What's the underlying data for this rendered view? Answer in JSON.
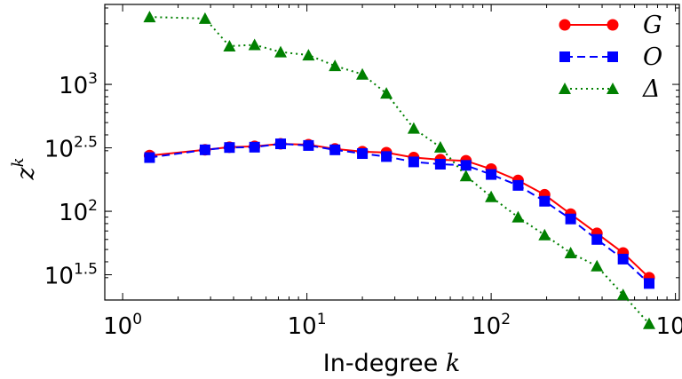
{
  "chart_data": {
    "type": "line",
    "xlabel": "In-degree",
    "xlabel_var": "k",
    "ylabel_var": "z",
    "ylabel_sup": "k",
    "xscale": "log",
    "yscale": "log",
    "xlim": [
      0.8,
      1050
    ],
    "ylim": [
      20,
      4265
    ],
    "x_ticks": [
      {
        "value": 1,
        "base": "10",
        "exp": "0"
      },
      {
        "value": 10,
        "base": "10",
        "exp": "1"
      },
      {
        "value": 100,
        "base": "10",
        "exp": "2"
      },
      {
        "value": 1000,
        "base": "10",
        "exp": "3"
      }
    ],
    "y_ticks": [
      {
        "value": 31.62,
        "base": "10",
        "exp": "1.5"
      },
      {
        "value": 100,
        "base": "10",
        "exp": "2"
      },
      {
        "value": 316.2,
        "base": "10",
        "exp": "2.5"
      },
      {
        "value": 1000,
        "base": "10",
        "exp": "3"
      }
    ],
    "legend_position": "top-right",
    "x": [
      1.4,
      2.8,
      3.8,
      5.2,
      7.2,
      10.2,
      14.2,
      20,
      27,
      38,
      53,
      73,
      100,
      140,
      195,
      270,
      375,
      520,
      720
    ],
    "series": [
      {
        "name": "G",
        "color": "#ff0000",
        "marker": "circle",
        "line": "solid",
        "values": [
          275,
          305,
          320,
          325,
          340,
          335,
          310,
          295,
          290,
          265,
          255,
          250,
          215,
          175,
          135,
          95,
          67,
          47,
          30
        ]
      },
      {
        "name": "O",
        "color": "#0000ff",
        "marker": "square",
        "line": "dashed",
        "values": [
          265,
          305,
          318,
          320,
          340,
          330,
          305,
          285,
          270,
          245,
          235,
          230,
          195,
          160,
          120,
          87,
          60,
          42,
          27
        ]
      },
      {
        "name": "Δ",
        "color": "#008000",
        "marker": "triangle",
        "line": "dotted",
        "values": [
          3400,
          3300,
          2000,
          2050,
          1800,
          1700,
          1400,
          1200,
          850,
          450,
          320,
          190,
          130,
          90,
          65,
          47,
          37,
          22,
          13
        ]
      }
    ]
  }
}
